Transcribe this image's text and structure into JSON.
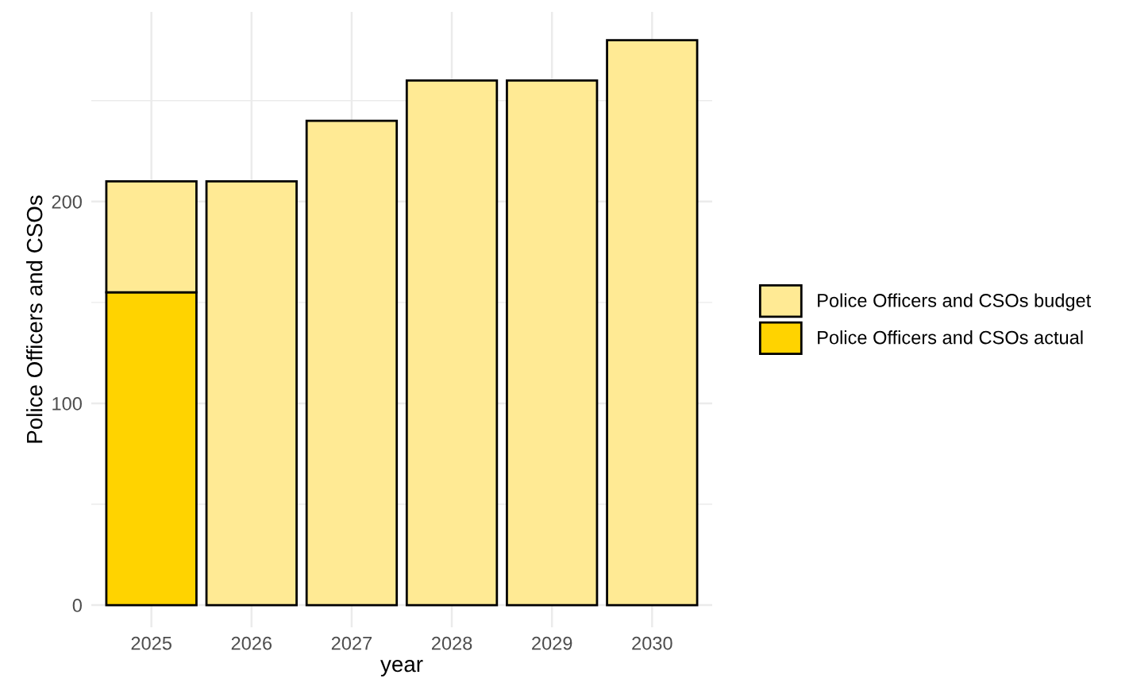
{
  "chart_data": {
    "type": "bar",
    "stacked": true,
    "xlabel": "year",
    "ylabel": "Police Officers and CSOs",
    "categories": [
      "2025",
      "2026",
      "2027",
      "2028",
      "2029",
      "2030"
    ],
    "series": [
      {
        "name": "Police Officers and CSOs actual",
        "color": "#ffd300",
        "values": [
          155,
          null,
          null,
          null,
          null,
          null
        ]
      },
      {
        "name": "Police Officers and CSOs budget",
        "color": "#ffea94",
        "values": [
          55,
          210,
          240,
          260,
          260,
          280
        ]
      }
    ],
    "ylim": [
      -11,
      294
    ],
    "yticks": [
      0,
      {
        "value": 50,
        "label": null
      },
      100,
      {
        "value": 150,
        "label": null
      },
      200,
      {
        "value": 250,
        "label": null
      }
    ],
    "grid": true,
    "legend": "right"
  }
}
